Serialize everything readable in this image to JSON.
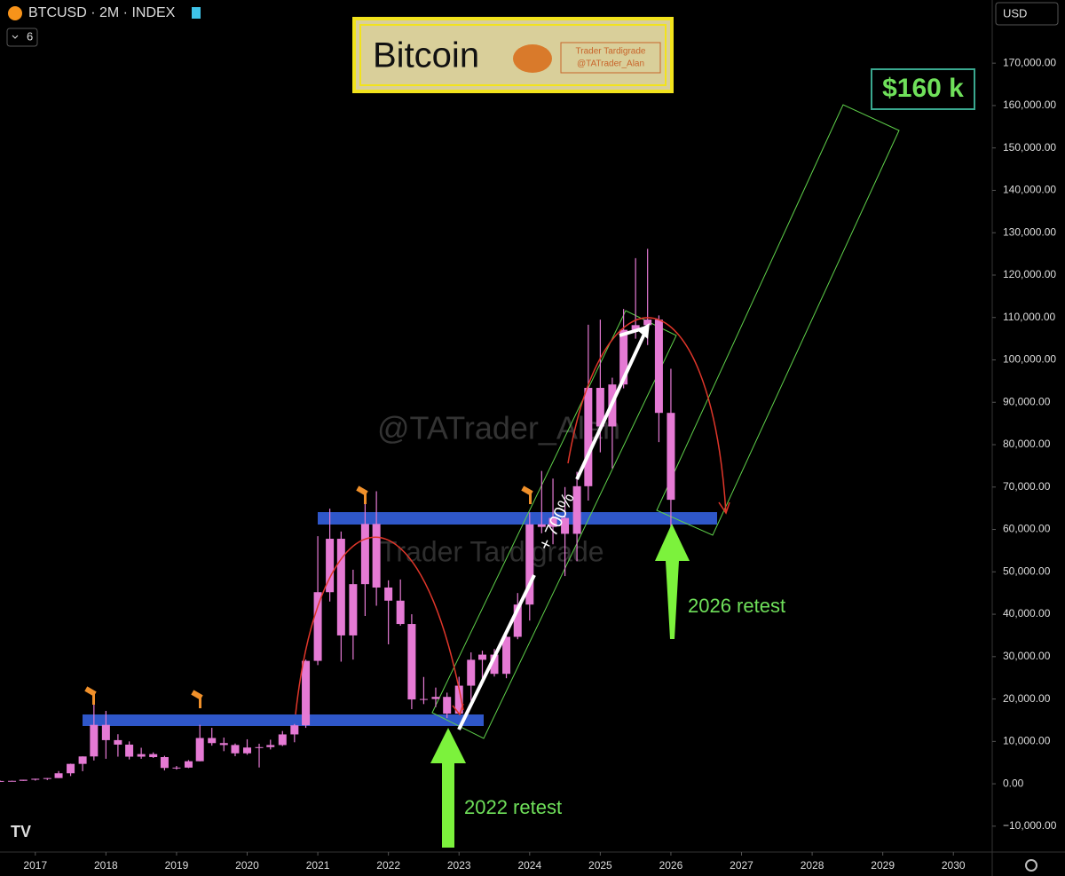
{
  "header": {
    "symbol": "BTCUSD · 2M · INDEX",
    "indicators": "6",
    "currency": "USD"
  },
  "title_box": {
    "title": "Bitcoin",
    "brand": "Trader Tardigrade",
    "handle": "@TATrader_Alan"
  },
  "annotations": {
    "target": "$160 k",
    "gain": "+ 700%",
    "retest_2022": "2022 retest",
    "retest_2026": "2026 retest",
    "watermark_handle": "@TATrader_Alan",
    "watermark_brand": "Trader Tardigrade"
  },
  "chart_data": {
    "type": "candlestick",
    "color": "#e57ad4",
    "grid": false,
    "x": [
      2016.5,
      2016.67,
      2016.83,
      2017,
      2017.17,
      2017.33,
      2017.5,
      2017.67,
      2017.83,
      2018,
      2018.17,
      2018.33,
      2018.5,
      2018.67,
      2018.83,
      2019,
      2019.17,
      2019.33,
      2019.5,
      2019.67,
      2019.83,
      2020,
      2020.17,
      2020.33,
      2020.5,
      2020.67,
      2020.83,
      2021,
      2021.17,
      2021.33,
      2021.5,
      2021.67,
      2021.83,
      2022,
      2022.17,
      2022.33,
      2022.5,
      2022.67,
      2022.83,
      2023,
      2023.17,
      2023.33,
      2023.5,
      2023.67,
      2023.83,
      2024,
      2024.17,
      2024.33,
      2024.5,
      2024.67,
      2024.83,
      2025,
      2025.17,
      2025.33,
      2025.5,
      2025.67,
      2025.83,
      2026
    ],
    "open": [
      670,
      575,
      700,
      960,
      1190,
      1350,
      2480,
      4700,
      6450,
      13900,
      10300,
      9240,
      6400,
      7000,
      6300,
      3740,
      3820,
      5320,
      10800,
      9600,
      9150,
      7190,
      8550,
      8650,
      9140,
      11650,
      13800,
      29000,
      45200,
      57800,
      35000,
      47100,
      61300,
      46300,
      43200,
      37700,
      19900,
      20000,
      20500,
      16550,
      23150,
      29250,
      30470,
      25940,
      34670,
      42280,
      61200,
      60600,
      62700,
      58970,
      70200,
      93400,
      84300,
      94200,
      107100,
      108200,
      109500,
      87500
    ],
    "high": [
      770,
      740,
      970,
      1200,
      1350,
      3000,
      4750,
      6470,
      19800,
      17200,
      11700,
      10000,
      8500,
      7400,
      6600,
      4200,
      5600,
      13900,
      13200,
      10900,
      9500,
      10500,
      9450,
      10400,
      12450,
      14100,
      29300,
      58400,
      64900,
      59500,
      50500,
      67000,
      69000,
      48000,
      48200,
      40000,
      25200,
      22700,
      21500,
      25250,
      31000,
      31400,
      31800,
      35000,
      45000,
      64000,
      73800,
      72000,
      70000,
      73600,
      108300,
      109500,
      95800,
      112000,
      124000,
      126200,
      110500,
      97900
    ],
    "low": [
      480,
      560,
      690,
      750,
      890,
      1350,
      1830,
      2970,
      5500,
      5900,
      6400,
      5750,
      5900,
      6100,
      3150,
      3350,
      3700,
      5300,
      9000,
      7700,
      6500,
      6850,
      3850,
      8100,
      8900,
      9800,
      13200,
      28000,
      43000,
      28800,
      29300,
      39600,
      42000,
      32900,
      37300,
      17600,
      18800,
      18100,
      15500,
      16500,
      19600,
      24800,
      25300,
      24900,
      34100,
      38500,
      59100,
      56500,
      49000,
      52500,
      66800,
      78200,
      74400,
      93300,
      105000,
      103500,
      80600,
      60000
    ],
    "close": [
      575,
      700,
      960,
      1190,
      1350,
      2480,
      4700,
      6450,
      13900,
      10300,
      9240,
      6400,
      7000,
      6300,
      3740,
      3820,
      5320,
      10800,
      9600,
      9150,
      7190,
      8550,
      8650,
      9140,
      11650,
      13800,
      29000,
      45200,
      57800,
      35000,
      47100,
      61300,
      46300,
      43200,
      37700,
      19900,
      20000,
      20500,
      16550,
      23150,
      29250,
      30470,
      25940,
      34670,
      42280,
      61200,
      60600,
      62700,
      58970,
      70200,
      93400,
      84300,
      94200,
      107100,
      108200,
      109500,
      87500,
      67000
    ],
    "xlim": [
      2016.5,
      2030.55
    ],
    "ylim": [
      -16100,
      184900
    ],
    "xticks": [
      2017,
      2018,
      2019,
      2020,
      2021,
      2022,
      2023,
      2024,
      2025,
      2026,
      2027,
      2028,
      2029,
      2030
    ],
    "yticks": [
      {
        "value": 170000,
        "label": "170,000.00"
      },
      {
        "value": 160000,
        "label": "160,000.00"
      },
      {
        "value": 150000,
        "label": "150,000.00"
      },
      {
        "value": 140000,
        "label": "140,000.00"
      },
      {
        "value": 130000,
        "label": "130,000.00"
      },
      {
        "value": 120000,
        "label": "120,000.00"
      },
      {
        "value": 110000,
        "label": "110,000.00"
      },
      {
        "value": 100000,
        "label": "100,000.00"
      },
      {
        "value": 90000,
        "label": "90,000.00"
      },
      {
        "value": 80000,
        "label": "80,000.00"
      },
      {
        "value": 70000,
        "label": "70,000.00"
      },
      {
        "value": 60000,
        "label": "60,000.00"
      },
      {
        "value": 50000,
        "label": "50,000.00"
      },
      {
        "value": 40000,
        "label": "40,000.00"
      },
      {
        "value": 30000,
        "label": "30,000.00"
      },
      {
        "value": 20000,
        "label": "20,000.00"
      },
      {
        "value": 10000,
        "label": "10,000.00"
      },
      {
        "value": 0,
        "label": "0.00"
      },
      {
        "value": -10000,
        "label": "−10,000.00"
      }
    ]
  }
}
